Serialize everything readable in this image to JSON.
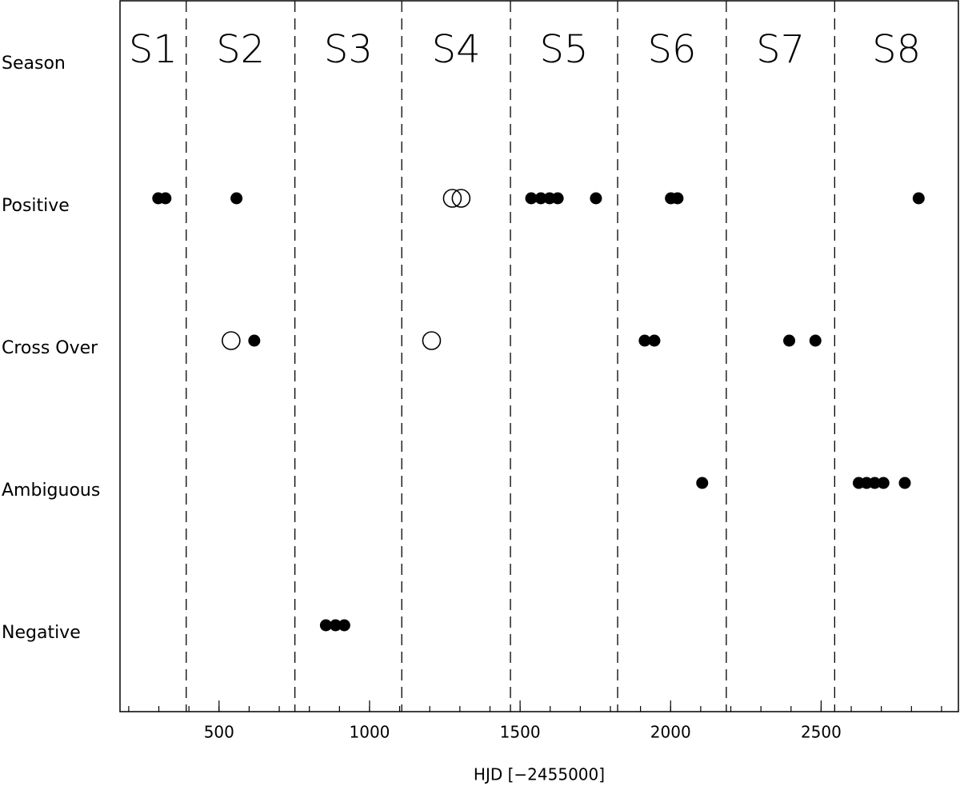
{
  "chart_data": {
    "type": "scatter",
    "xlabel": "HJD [−2455000]",
    "xlim": [
      171,
      2956
    ],
    "xticks": [
      500,
      1000,
      1500,
      2000,
      2500
    ],
    "minor_step": 100,
    "categories": [
      "Season",
      "Positive",
      "Cross Over",
      "Ambiguous",
      "Negative"
    ],
    "seasons": [
      "S1",
      "S2",
      "S3",
      "S4",
      "S5",
      "S6",
      "S7",
      "S8"
    ],
    "season_boundaries": [
      391,
      752,
      1107,
      1468,
      1824,
      2185,
      2545
    ],
    "series": [
      {
        "marker": "filled",
        "color": "#000000",
        "x": [
          298,
          322,
          558,
          1537,
          1569,
          1598,
          1625,
          1752,
          2001,
          2023,
          2824,
          617,
          1914,
          1946,
          2394,
          2481,
          2105,
          2625,
          2651,
          2678,
          2707,
          2778,
          855,
          887,
          916
        ],
        "values": [
          "Positive",
          "Positive",
          "Positive",
          "Positive",
          "Positive",
          "Positive",
          "Positive",
          "Positive",
          "Positive",
          "Positive",
          "Positive",
          "Cross Over",
          "Cross Over",
          "Cross Over",
          "Cross Over",
          "Cross Over",
          "Ambiguous",
          "Ambiguous",
          "Ambiguous",
          "Ambiguous",
          "Ambiguous",
          "Ambiguous",
          "Negative",
          "Negative",
          "Negative"
        ]
      },
      {
        "marker": "open",
        "color": "#000000",
        "x": [
          1275,
          1304,
          540,
          1206
        ],
        "values": [
          "Positive",
          "Positive",
          "Cross Over",
          "Cross Over"
        ]
      }
    ]
  }
}
